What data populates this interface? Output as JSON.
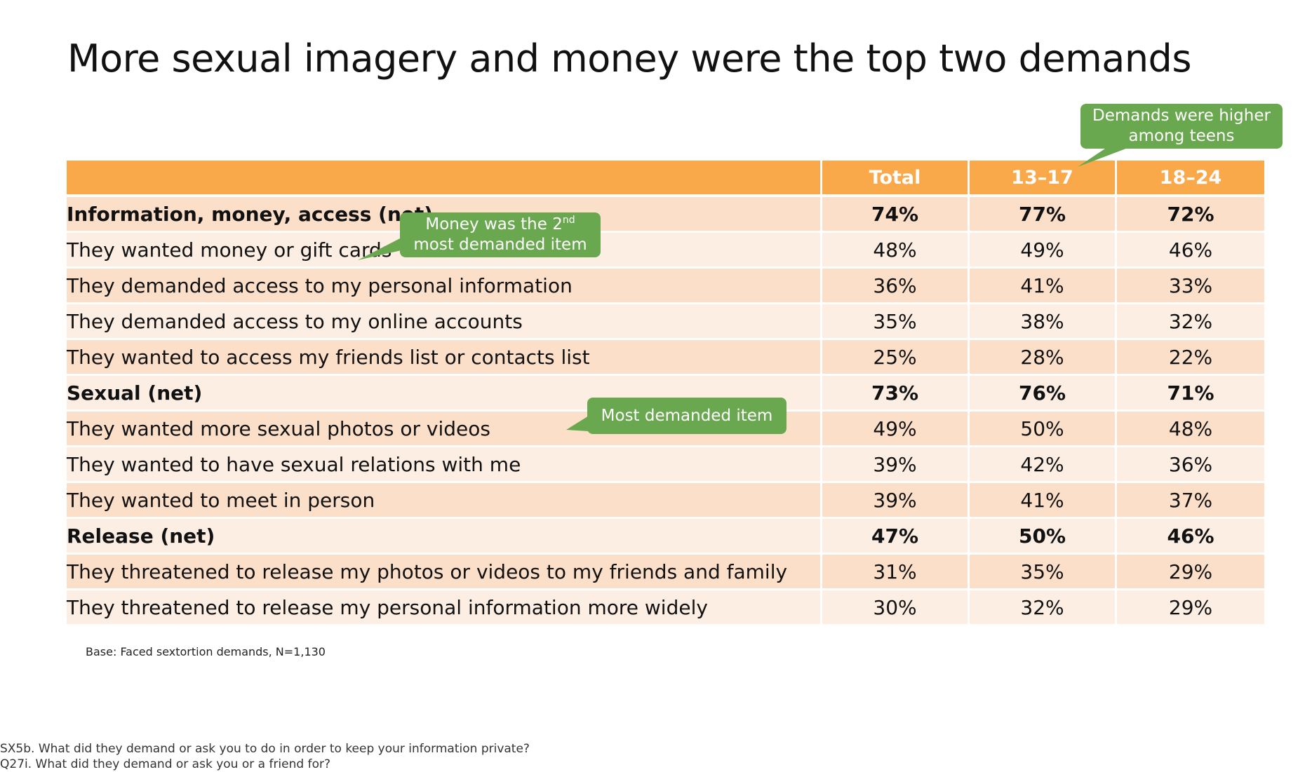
{
  "slide": {
    "title": "More sexual imagery and money were the top two demands"
  },
  "table": {
    "headers": [
      "",
      "Total",
      "13–17",
      "18–24"
    ],
    "rows": [
      {
        "label": "Information, money, access (net)",
        "net": true,
        "values": [
          "74%",
          "77%",
          "72%"
        ]
      },
      {
        "label": "They wanted money or gift cards",
        "net": false,
        "values": [
          "48%",
          "49%",
          "46%"
        ]
      },
      {
        "label": "They demanded access to my personal information",
        "net": false,
        "values": [
          "36%",
          "41%",
          "33%"
        ]
      },
      {
        "label": "They demanded access to my online accounts",
        "net": false,
        "values": [
          "35%",
          "38%",
          "32%"
        ]
      },
      {
        "label": "They wanted to access my friends list or contacts list",
        "net": false,
        "values": [
          "25%",
          "28%",
          "22%"
        ]
      },
      {
        "label": "Sexual (net)",
        "net": true,
        "values": [
          "73%",
          "76%",
          "71%"
        ]
      },
      {
        "label": "They wanted more sexual photos or videos",
        "net": false,
        "values": [
          "49%",
          "50%",
          "48%"
        ]
      },
      {
        "label": "They wanted to have sexual relations with me",
        "net": false,
        "values": [
          "39%",
          "42%",
          "36%"
        ]
      },
      {
        "label": "They wanted to meet in person",
        "net": false,
        "values": [
          "39%",
          "41%",
          "37%"
        ]
      },
      {
        "label": "Release (net)",
        "net": true,
        "values": [
          "47%",
          "50%",
          "46%"
        ]
      },
      {
        "label": "They threatened to release my photos or videos to my friends and family",
        "net": false,
        "values": [
          "31%",
          "35%",
          "29%"
        ]
      },
      {
        "label": "They threatened to release my personal information more widely",
        "net": false,
        "values": [
          "30%",
          "32%",
          "29%"
        ]
      }
    ]
  },
  "callouts": {
    "teens_line1": "Demands were higher",
    "teens_line2": "among teens",
    "money_line1_pre": "Money was the 2",
    "money_line1_sup": "nd",
    "money_line2": "most demanded item",
    "most": "Most demanded item"
  },
  "base_note": "Base: Faced sextortion demands, N=1,130",
  "footnotes": [
    "SX5b. What did they demand or ask you to do in order to keep your information private?",
    "Q27i. What did they demand or ask you or a friend for?"
  ],
  "colors": {
    "header": "#f9a84a",
    "row_odd": "#fcdfc9",
    "row_even": "#fdeee4",
    "callout": "#6aa84f"
  }
}
